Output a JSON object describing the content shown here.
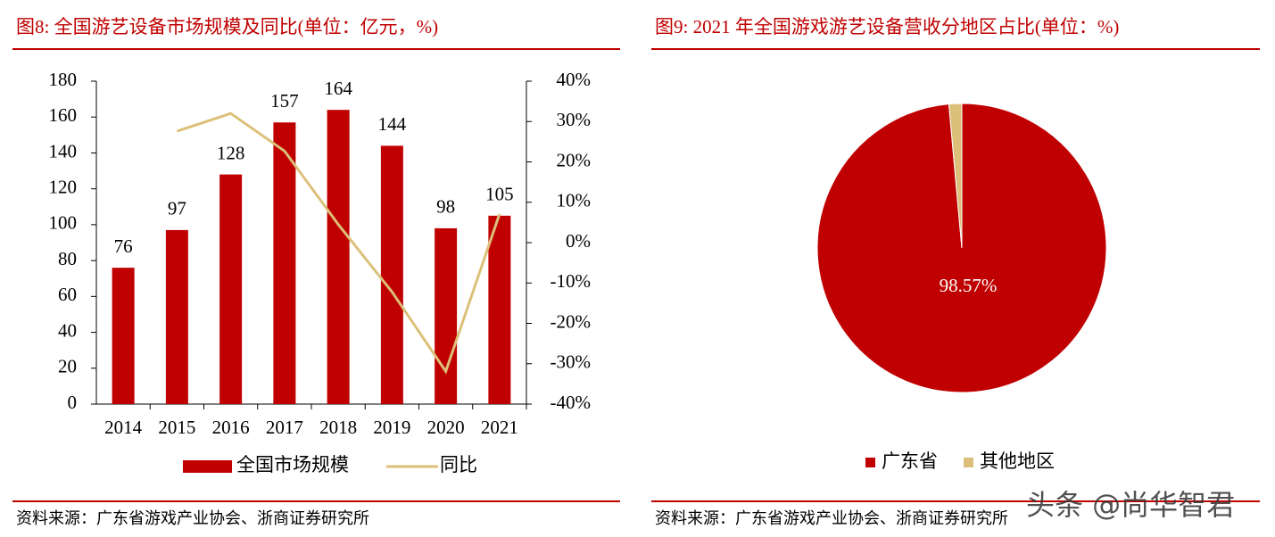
{
  "chart_data": [
    {
      "type": "bar",
      "title": "图8:  全国游艺设备市场规模及同比(单位：亿元，%)",
      "source": "资料来源：广东省游戏产业协会、浙商证券研究所",
      "categories": [
        "2014",
        "2015",
        "2016",
        "2017",
        "2018",
        "2019",
        "2020",
        "2021"
      ],
      "series": [
        {
          "name": "全国市场规模",
          "color": "#c00000",
          "type": "bar",
          "values": [
            76,
            97,
            128,
            157,
            164,
            144,
            98,
            105
          ]
        },
        {
          "name": "同比",
          "color": "#dcc07a",
          "type": "line",
          "axis": "y2",
          "values": [
            null,
            27.6,
            32,
            22.7,
            4.5,
            -12.2,
            -31.9,
            7.1
          ]
        }
      ],
      "ylim": [
        0,
        180
      ],
      "yticks": [
        0,
        20,
        40,
        60,
        80,
        100,
        120,
        140,
        160,
        180
      ],
      "y2lim": [
        -40,
        40
      ],
      "y2ticks": [
        {
          "value": -40,
          "label": "-40%"
        },
        {
          "value": -30,
          "label": "-30%"
        },
        {
          "value": -20,
          "label": "-20%"
        },
        {
          "value": -10,
          "label": "-10%"
        },
        {
          "value": 0,
          "label": "0%"
        },
        {
          "value": 10,
          "label": "10%"
        },
        {
          "value": 20,
          "label": "20%"
        },
        {
          "value": 30,
          "label": "30%"
        },
        {
          "value": 40,
          "label": "40%"
        }
      ],
      "legend": "bottom"
    },
    {
      "type": "pie",
      "title": "图9:  2021 年全国游戏游艺设备营收分地区占比(单位：%)",
      "source": "资料来源：广东省游戏产业协会、浙商证券研究所",
      "categories": [
        "广东省",
        "其他地区"
      ],
      "values": [
        98.57,
        1.43
      ],
      "value_labels": [
        "98.57%",
        null
      ],
      "colors": [
        "#c00000",
        "#dcc07a"
      ],
      "legend": "bottom"
    }
  ],
  "watermark": "头条 @尚华智君"
}
